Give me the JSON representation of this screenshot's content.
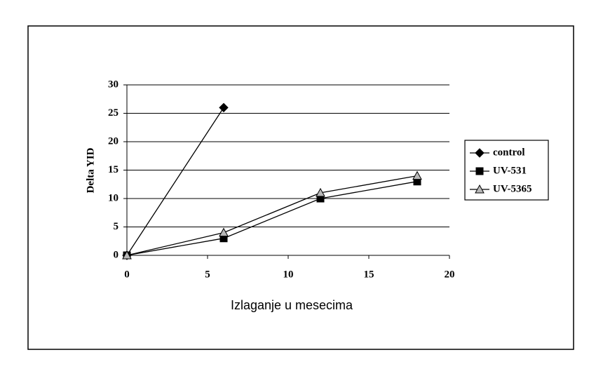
{
  "chart_data": {
    "type": "line",
    "x_label": "Izlaganje u mesecima",
    "y_label": "Delta YID",
    "x": [
      0,
      6,
      12,
      18
    ],
    "series": [
      {
        "name": "control",
        "color": "#000000",
        "marker": "diamond",
        "values": [
          0,
          26,
          null,
          null
        ]
      },
      {
        "name": "UV-531",
        "color": "#000000",
        "marker": "square",
        "values": [
          0,
          3,
          10,
          13
        ]
      },
      {
        "name": "UV-5365",
        "color": "#b8b8b8",
        "marker": "triangle",
        "values": [
          0,
          4,
          11,
          14
        ]
      }
    ],
    "xlim": [
      0,
      20
    ],
    "xticks": [
      0,
      5,
      10,
      15,
      20
    ],
    "ylim": [
      0,
      30
    ],
    "yticks": [
      0,
      5,
      10,
      15,
      20,
      25,
      30
    ],
    "grid": true,
    "legend": "right"
  }
}
